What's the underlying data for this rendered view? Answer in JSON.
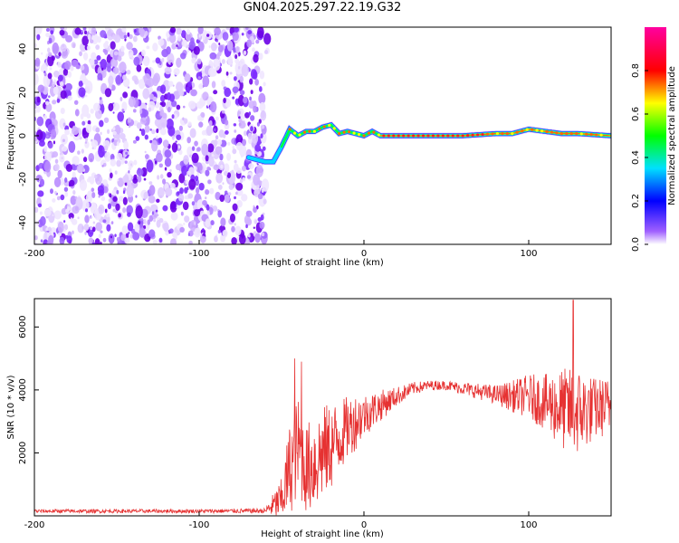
{
  "title": "GN04.2025.297.22.19.G32",
  "chart_data": [
    {
      "type": "heatmap",
      "xlabel": "Height of straight line (km)",
      "ylabel": "Frequency (Hz)",
      "xlim": [
        -200,
        150
      ],
      "ylim": [
        -50,
        50
      ],
      "x_ticks": [
        -200,
        -100,
        0,
        100
      ],
      "x_tick_labels": [
        "-200",
        "-100",
        "0",
        "100"
      ],
      "y_ticks": [
        -40,
        -20,
        0,
        20,
        40
      ],
      "y_tick_labels": [
        "-40",
        "-20",
        "0",
        "20",
        "40"
      ],
      "colorbar": {
        "label": "Normalized spectral amplitude",
        "range": [
          0,
          1
        ],
        "ticks": [
          0.0,
          0.2,
          0.4,
          0.6,
          0.8
        ],
        "tick_labels": [
          "0.0",
          "0.2",
          "0.4",
          "0.6",
          "0.8"
        ],
        "colormap": "rainbow (white-purple-blue-cyan-green-yellow-red-magenta)"
      },
      "noise_region_x": [
        -200,
        -60
      ],
      "ridge": {
        "x": [
          -70,
          -60,
          -55,
          -50,
          -45,
          -40,
          -35,
          -30,
          -25,
          -20,
          -15,
          -10,
          -5,
          0,
          5,
          10,
          20,
          40,
          60,
          80,
          90,
          100,
          110,
          120,
          130,
          150
        ],
        "frequency": [
          -10,
          -12,
          -12,
          -5,
          3,
          0,
          2,
          2,
          4,
          5,
          1,
          2,
          1,
          0,
          2,
          0,
          0,
          0,
          0,
          1,
          1,
          3,
          2,
          1,
          1,
          0
        ]
      },
      "grid": false
    },
    {
      "type": "line",
      "xlabel": "Height of straight line (km)",
      "ylabel": "SNR (10 * v/v)",
      "xlim": [
        -200,
        150
      ],
      "ylim": [
        0,
        6900
      ],
      "x_ticks": [
        -200,
        -100,
        0,
        100
      ],
      "x_tick_labels": [
        "-200",
        "-100",
        "0",
        "100"
      ],
      "y_ticks": [
        2000,
        4000,
        6000
      ],
      "y_tick_labels": [
        "2000",
        "4000",
        "6000"
      ],
      "color": "#e63232",
      "grid": false,
      "envelope": {
        "x": [
          -200,
          -150,
          -100,
          -60,
          -50,
          -45,
          -40,
          -35,
          -30,
          -25,
          -20,
          -15,
          -10,
          -5,
          0,
          10,
          20,
          30,
          40,
          50,
          60,
          70,
          80,
          90,
          100,
          110,
          120,
          130,
          140,
          150
        ],
        "mean": [
          150,
          150,
          150,
          160,
          500,
          1500,
          2200,
          1500,
          1700,
          2000,
          2200,
          2500,
          2800,
          3000,
          3200,
          3500,
          3800,
          4050,
          4150,
          4150,
          4050,
          3950,
          3850,
          3800,
          3800,
          3600,
          3400,
          3300,
          3400,
          3500
        ],
        "amp": [
          60,
          60,
          60,
          80,
          700,
          1500,
          1600,
          1400,
          1600,
          1500,
          1400,
          1200,
          1000,
          900,
          700,
          500,
          300,
          200,
          150,
          150,
          200,
          250,
          300,
          500,
          700,
          900,
          1300,
          1400,
          1000,
          900
        ]
      },
      "peaks": [
        {
          "x": 127,
          "y": 6850
        },
        {
          "x": -42,
          "y": 5000
        },
        {
          "x": -38,
          "y": 4900
        }
      ]
    }
  ]
}
